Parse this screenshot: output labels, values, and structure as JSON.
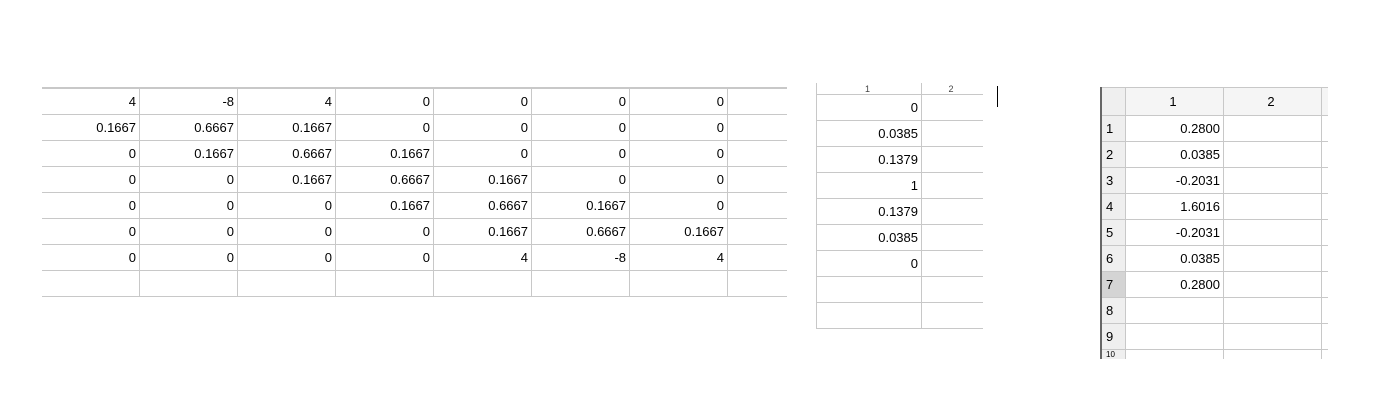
{
  "matrix_a": {
    "rows": [
      [
        "4",
        "-8",
        "4",
        "0",
        "0",
        "0",
        "0",
        ""
      ],
      [
        "0.1667",
        "0.6667",
        "0.1667",
        "0",
        "0",
        "0",
        "0",
        ""
      ],
      [
        "0",
        "0.1667",
        "0.6667",
        "0.1667",
        "0",
        "0",
        "0",
        ""
      ],
      [
        "0",
        "0",
        "0.1667",
        "0.6667",
        "0.1667",
        "0",
        "0",
        ""
      ],
      [
        "0",
        "0",
        "0",
        "0.1667",
        "0.6667",
        "0.1667",
        "0",
        ""
      ],
      [
        "0",
        "0",
        "0",
        "0",
        "0.1667",
        "0.6667",
        "0.1667",
        ""
      ],
      [
        "0",
        "0",
        "0",
        "0",
        "4",
        "-8",
        "4",
        ""
      ],
      [
        "",
        "",
        "",
        "",
        "",
        "",
        "",
        ""
      ]
    ]
  },
  "vector_b": {
    "headers": [
      "1",
      "2"
    ],
    "values": [
      "0",
      "0.0385",
      "0.1379",
      "1",
      "0.1379",
      "0.0385",
      "0",
      "",
      ""
    ]
  },
  "vector_c": {
    "headers": [
      "1",
      "2"
    ],
    "row_labels": [
      "1",
      "2",
      "3",
      "4",
      "5",
      "6",
      "7",
      "8",
      "9",
      "10"
    ],
    "values": [
      "0.2800",
      "0.0385",
      "-0.2031",
      "1.6016",
      "-0.2031",
      "0.0385",
      "0.2800",
      "",
      "",
      ""
    ],
    "selected_row": "7"
  }
}
